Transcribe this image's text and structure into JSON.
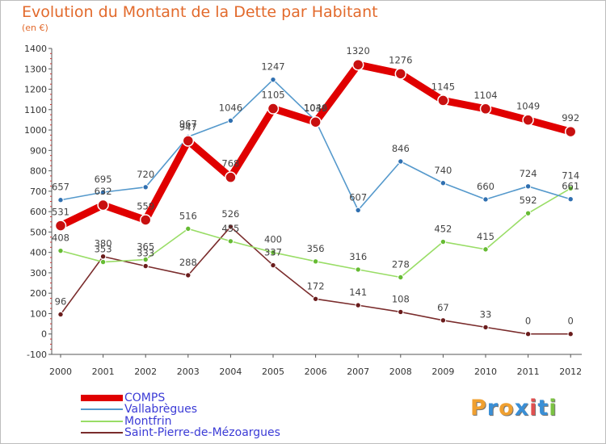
{
  "header": {
    "title": "Evolution du Montant de la Dette par Habitant",
    "subtitle": "(en €)"
  },
  "logo": {
    "text": "Proxiti",
    "colors": [
      "#f0a030",
      "#3a8fd6",
      "#f0a030",
      "#3a8fd6",
      "#e05050",
      "#3a8fd6",
      "#7cc243"
    ]
  },
  "chart_data": {
    "type": "line",
    "title": "Evolution du Montant de la Dette par Habitant",
    "subtitle": "(en €)",
    "x": [
      "2000",
      "2001",
      "2002",
      "2003",
      "2004",
      "2005",
      "2006",
      "2007",
      "2008",
      "2009",
      "2010",
      "2011",
      "2012"
    ],
    "yticks": [
      -100,
      0,
      100,
      200,
      300,
      400,
      500,
      600,
      700,
      800,
      900,
      1000,
      1100,
      1200,
      1300,
      1400
    ],
    "ylim": [
      -100,
      1400
    ],
    "grid": false,
    "legend_position": "bottom-left",
    "series": [
      {
        "name": "COMPS",
        "color": "#e00000",
        "point_color": "#c81010",
        "values": [
          531,
          632,
          559,
          947,
          768,
          1105,
          1039,
          1320,
          1276,
          1145,
          1104,
          1049,
          992
        ],
        "labels": [
          "531",
          "632",
          "559",
          "947",
          "768",
          "1105",
          "1039",
          "1320",
          "1276",
          "1145",
          "1104",
          "1049",
          "992"
        ]
      },
      {
        "name": "Vallabrègues",
        "color": "#5599cc",
        "point_color": "#2f6fb0",
        "values": [
          657,
          695,
          720,
          967,
          1046,
          1247,
          1046,
          607,
          846,
          740,
          660,
          724,
          661
        ],
        "labels": [
          "657",
          "695",
          "720",
          "967",
          "1046",
          "1247",
          "1046",
          "607",
          "846",
          "740",
          "660",
          "724",
          "661"
        ]
      },
      {
        "name": "Montfrin",
        "color": "#99dd66",
        "point_color": "#66bb33",
        "values": [
          408,
          353,
          365,
          516,
          455,
          400,
          356,
          316,
          278,
          452,
          415,
          592,
          714
        ],
        "labels": [
          "408",
          "353",
          "365",
          "516",
          "455",
          "400",
          "356",
          "316",
          "278",
          "452",
          "415",
          "592",
          "714"
        ]
      },
      {
        "name": "Saint-Pierre-de-Mézoargues",
        "color": "#7a2c2c",
        "point_color": "#6a1c1c",
        "values": [
          96,
          380,
          333,
          288,
          526,
          337,
          172,
          141,
          108,
          67,
          33,
          0,
          0
        ],
        "labels": [
          "96",
          "380",
          "333",
          "288",
          "526",
          "337",
          "172",
          "141",
          "108",
          "67",
          "33",
          "0",
          "0"
        ]
      }
    ]
  }
}
